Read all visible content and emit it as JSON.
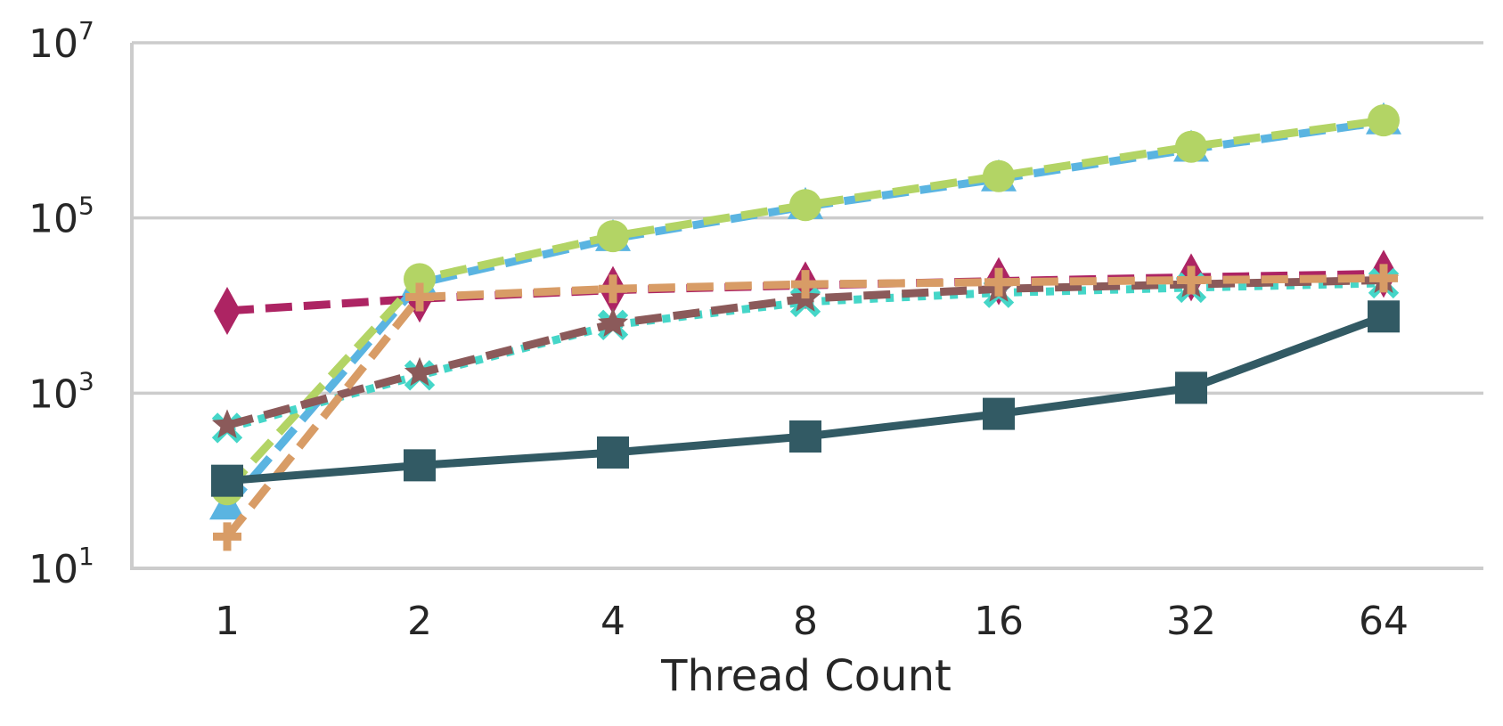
{
  "chart_data": {
    "type": "line",
    "title": "",
    "xlabel": "Thread Count",
    "ylabel": "",
    "x": [
      1,
      2,
      4,
      8,
      16,
      32,
      64
    ],
    "x_tick_labels": [
      "1",
      "2",
      "4",
      "8",
      "16",
      "32",
      "64"
    ],
    "y_scale": "log",
    "ylim": [
      10,
      10000000
    ],
    "y_ticks": [
      {
        "base": "10",
        "exp": "1"
      },
      {
        "base": "10",
        "exp": "3"
      },
      {
        "base": "10",
        "exp": "5"
      },
      {
        "base": "10",
        "exp": "7"
      }
    ],
    "grid": "horizontal",
    "legend": "none",
    "series": [
      {
        "color": "#ad2463",
        "marker": "thin_diamond",
        "dash": "dashed",
        "values": [
          8700,
          12000,
          15000,
          17000,
          19000,
          21000,
          23000
        ]
      },
      {
        "color": "#5ab4e1",
        "marker": "triangle",
        "dash": "dashed",
        "values": [
          50,
          18000,
          58000,
          135000,
          280000,
          610000,
          1250000
        ]
      },
      {
        "color": "#b3d465",
        "marker": "circle",
        "dash": "dashed",
        "values": [
          80,
          20000,
          62000,
          140000,
          300000,
          650000,
          1300000
        ]
      },
      {
        "color": "#45d6c8",
        "marker": "x",
        "dash": "dotted",
        "values": [
          400,
          1600,
          6000,
          11000,
          14000,
          16000,
          18000
        ]
      },
      {
        "color": "#8b5a5a",
        "marker": "star",
        "dash": "dashed",
        "values": [
          430,
          1700,
          6200,
          12000,
          15500,
          17500,
          19500
        ]
      },
      {
        "color": "#d89c66",
        "marker": "plus",
        "dash": "dashed",
        "values": [
          23,
          12500,
          15500,
          17500,
          18500,
          19500,
          20500
        ]
      },
      {
        "color": "#325a64",
        "marker": "square",
        "dash": "solid",
        "values": [
          100,
          150,
          210,
          320,
          580,
          1150,
          7500
        ]
      }
    ]
  }
}
